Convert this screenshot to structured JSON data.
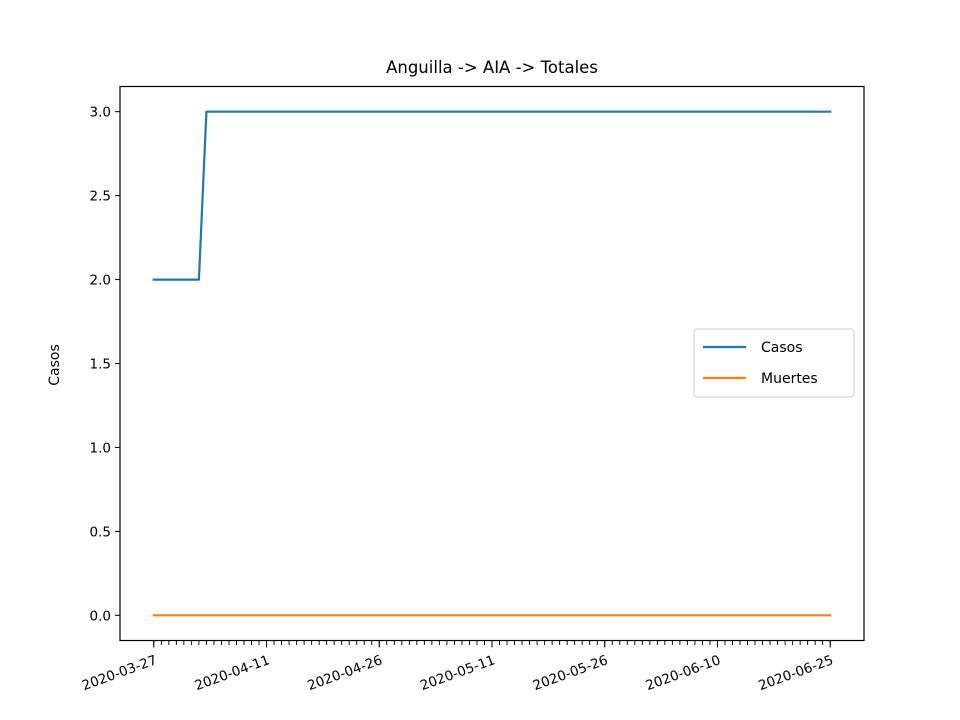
{
  "chart_data": {
    "type": "line",
    "title": "Anguilla -> AIA -> Totales",
    "xlabel": "",
    "ylabel": "Casos",
    "x_range": [
      "2020-03-23",
      "2020-06-25"
    ],
    "ylim": [
      -0.15,
      3.15
    ],
    "y_ticks": [
      0.0,
      0.5,
      1.0,
      1.5,
      2.0,
      2.5,
      3.0
    ],
    "y_tick_labels": [
      "0.0",
      "0.5",
      "1.0",
      "1.5",
      "2.0",
      "2.5",
      "3.0"
    ],
    "x_ticks": [
      "2020-03-27",
      "2020-04-11",
      "2020-04-26",
      "2020-05-11",
      "2020-05-26",
      "2020-06-10",
      "2020-06-25"
    ],
    "x_minor_tick_step_days": 1,
    "grid": false,
    "legend_position": "center right",
    "series": [
      {
        "name": "Casos",
        "color": "#1f77b4",
        "points": [
          {
            "x": "2020-03-27",
            "y": 2
          },
          {
            "x": "2020-04-02",
            "y": 2
          },
          {
            "x": "2020-04-03",
            "y": 3
          },
          {
            "x": "2020-06-25",
            "y": 3
          }
        ]
      },
      {
        "name": "Muertes",
        "color": "#ff7f0e",
        "points": [
          {
            "x": "2020-03-27",
            "y": 0
          },
          {
            "x": "2020-06-25",
            "y": 0
          }
        ]
      }
    ]
  }
}
